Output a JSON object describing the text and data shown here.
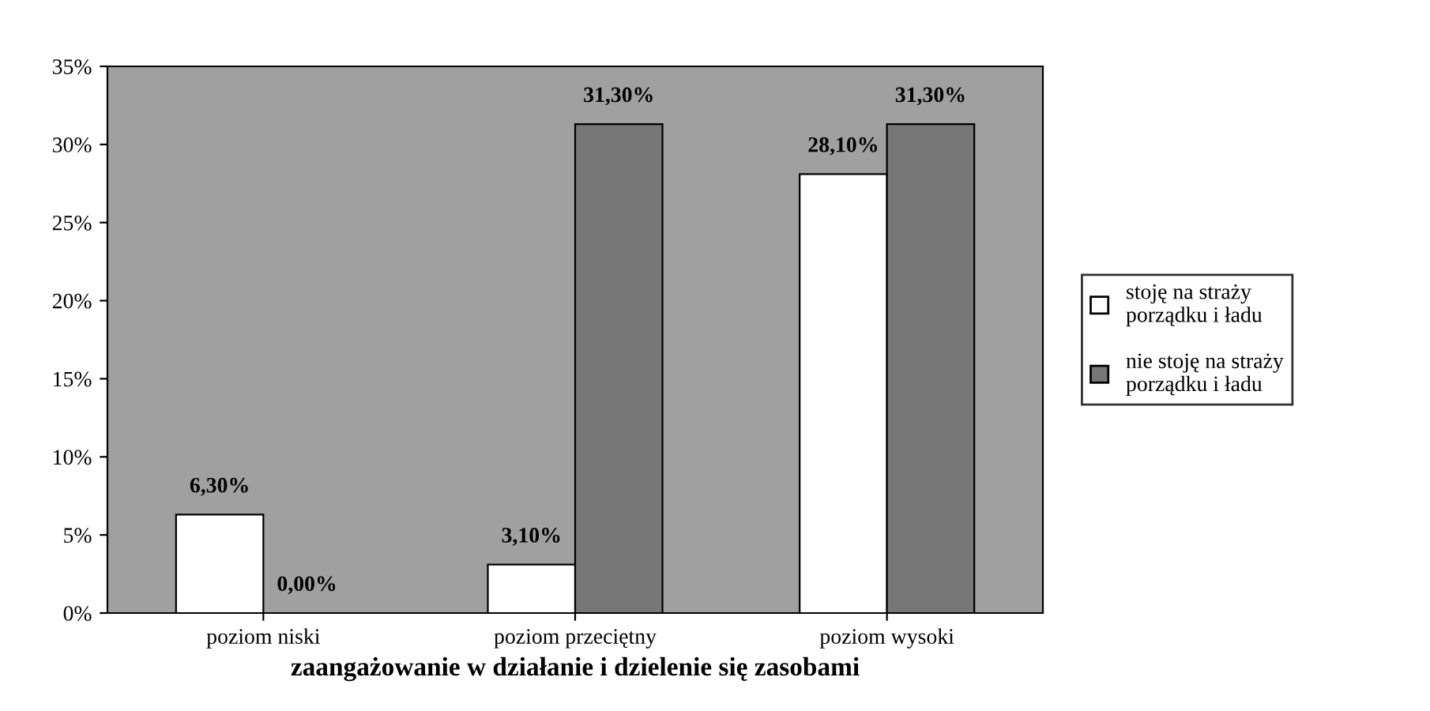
{
  "chart_data": {
    "type": "bar",
    "xlabel": "zaangażowanie w działanie i dzielenie się zasobami",
    "categories": [
      "poziom niski",
      "poziom przeciętny",
      "poziom wysoki"
    ],
    "series": [
      {
        "name": "stoję na straży porządku i ładu",
        "color": "#ffffff",
        "values": [
          6.3,
          3.1,
          28.1
        ],
        "value_labels": [
          "6,30%",
          "3,10%",
          "28,10%"
        ]
      },
      {
        "name": "nie stoję na straży porządku i ładu",
        "color": "#777777",
        "values": [
          0.0,
          31.3,
          31.3
        ],
        "value_labels": [
          "0,00%",
          "31,30%",
          "31,30%"
        ]
      }
    ],
    "ylim": [
      0,
      35
    ],
    "yticks": [
      {
        "value": 0,
        "label": "0%"
      },
      {
        "value": 5,
        "label": "5%"
      },
      {
        "value": 10,
        "label": "10%"
      },
      {
        "value": 15,
        "label": "15%"
      },
      {
        "value": 20,
        "label": "20%"
      },
      {
        "value": 25,
        "label": "25%"
      },
      {
        "value": 30,
        "label": "30%"
      },
      {
        "value": 35,
        "label": "35%"
      }
    ],
    "grid": false,
    "legend": "right"
  }
}
